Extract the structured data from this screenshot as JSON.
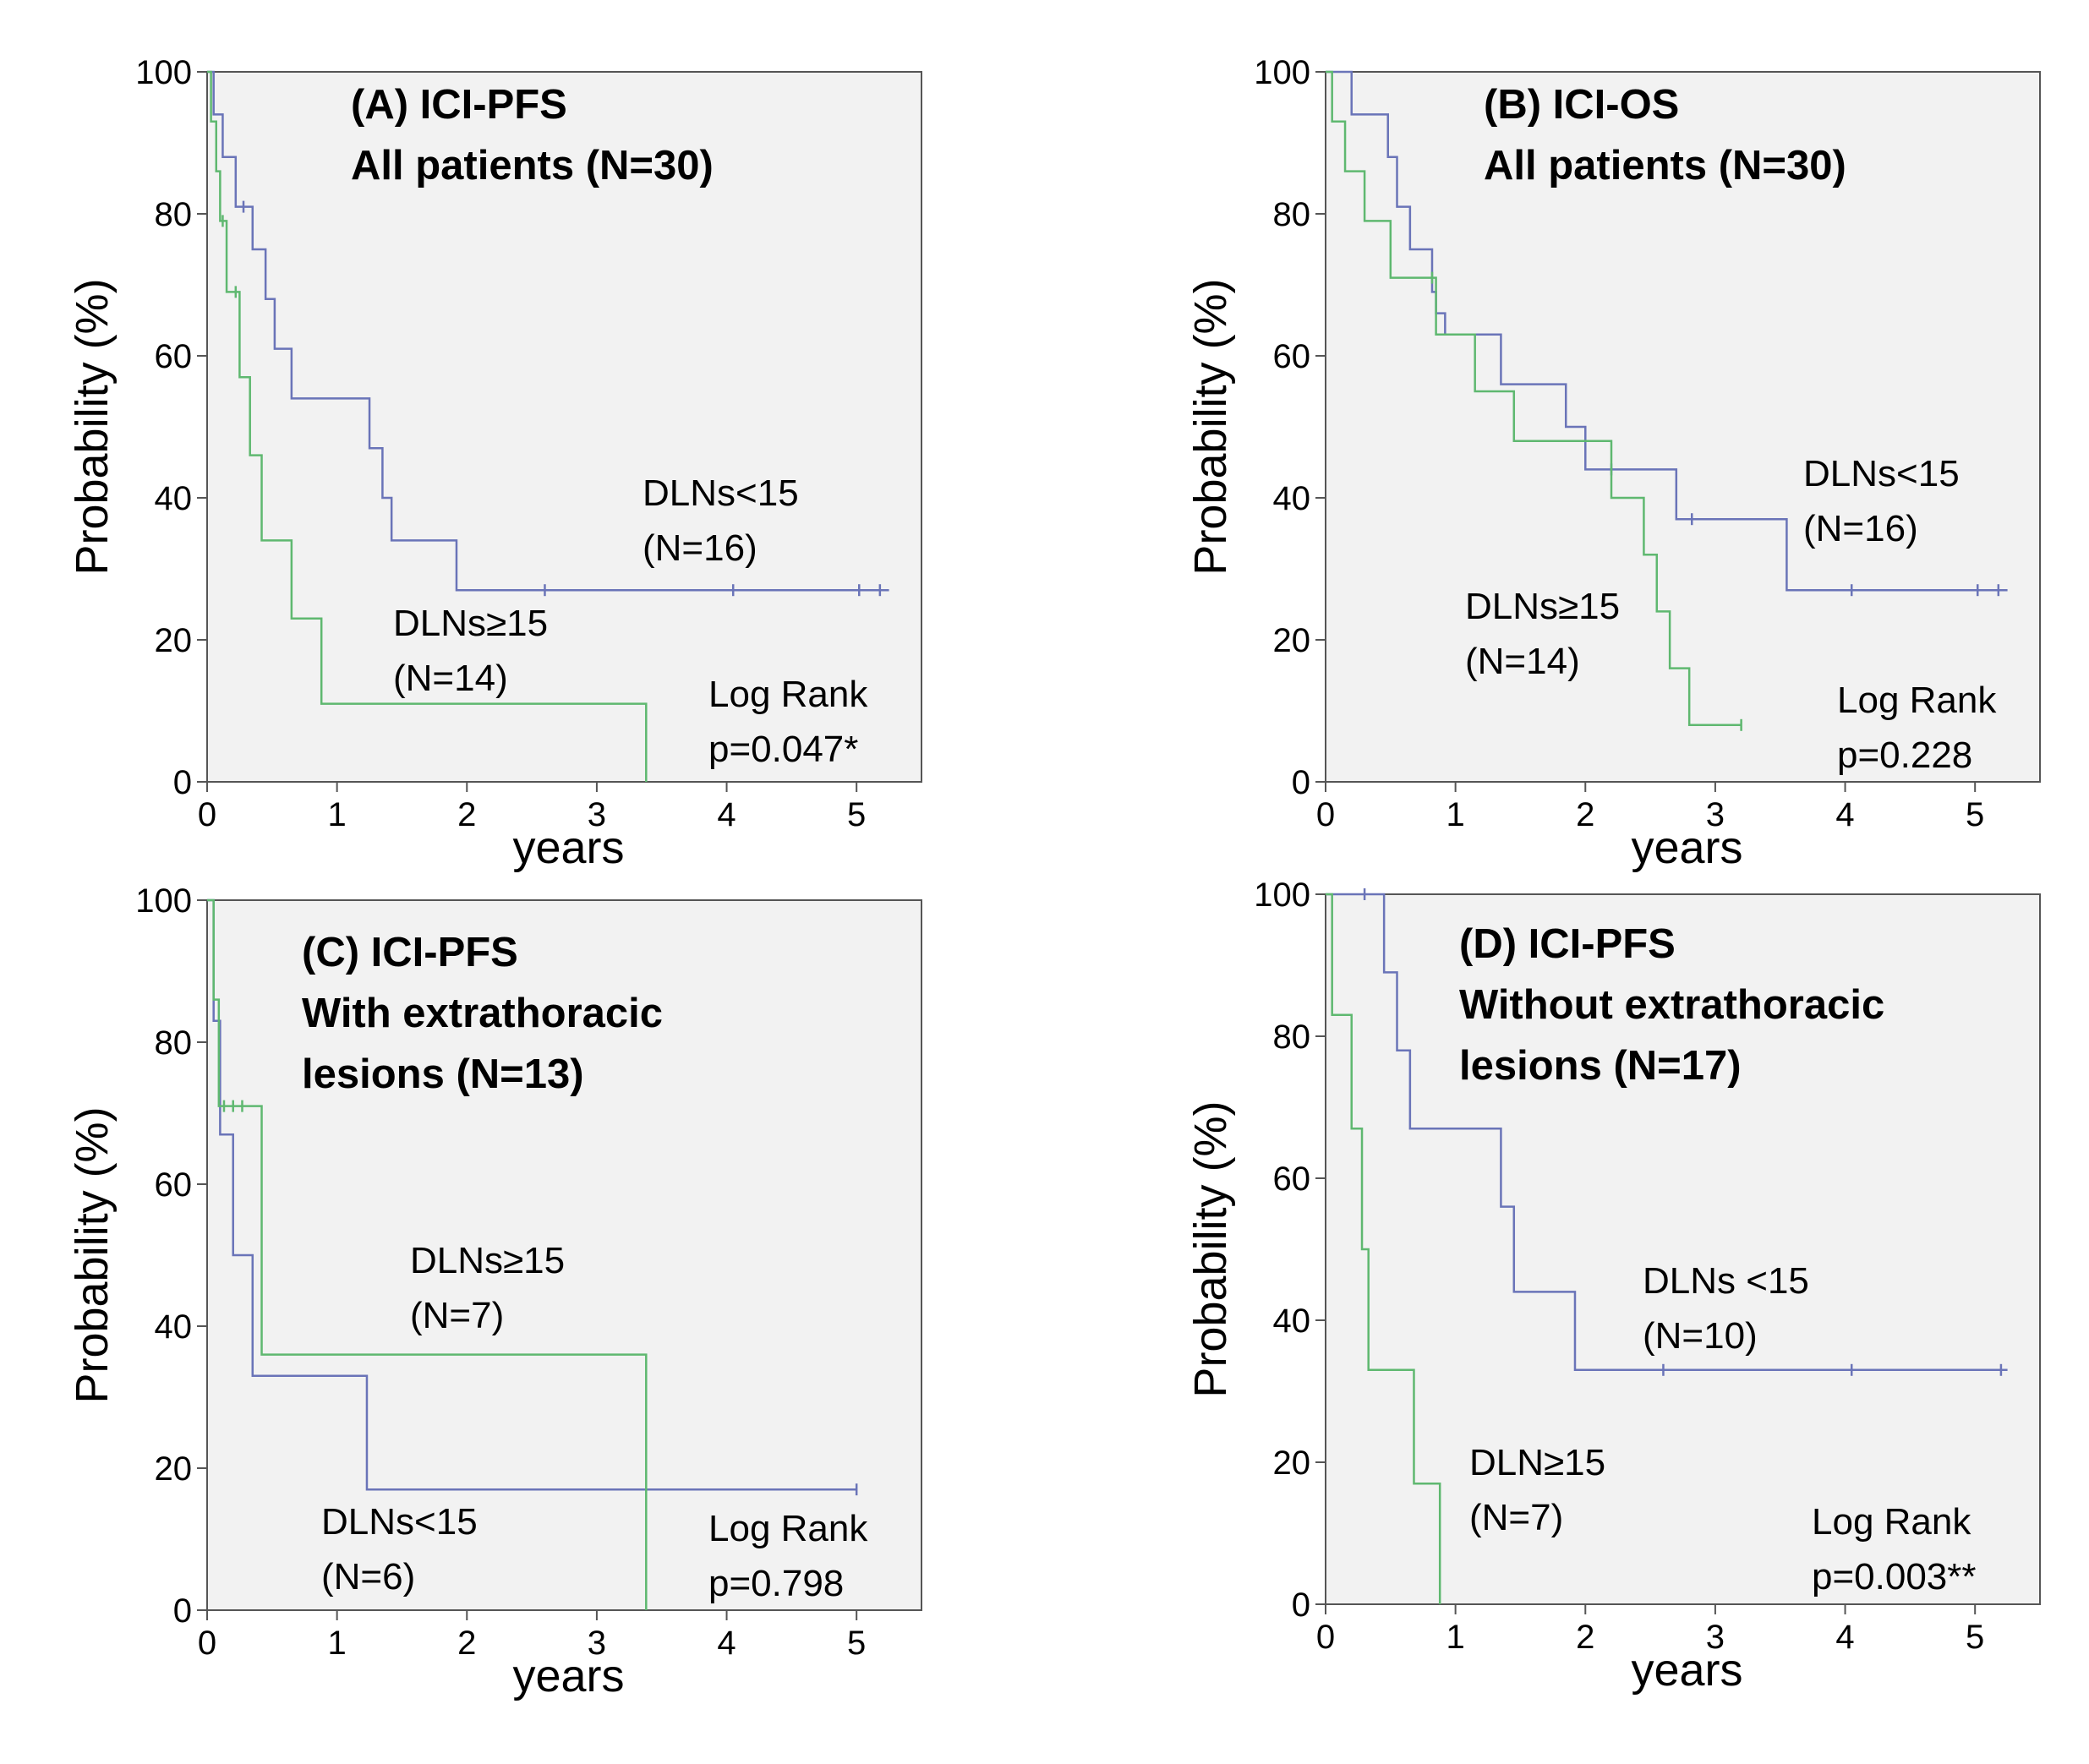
{
  "colors": {
    "green": "#5fb870",
    "blue": "#6a74b8"
  },
  "chart_data": [
    {
      "type": "line",
      "step": true,
      "title_lines": [
        "(A) ICI-PFS",
        "All patients (N=30)"
      ],
      "xlabel": "years",
      "ylabel": "Probability (%)",
      "xlim": [
        0,
        5.5
      ],
      "ylim": [
        0,
        100
      ],
      "xticks": [
        0,
        1,
        2,
        3,
        4,
        5
      ],
      "yticks": [
        0,
        20,
        40,
        60,
        80,
        100
      ],
      "series": [
        {
          "name": "DLNs<15 (N=16)",
          "color": "blue",
          "x": [
            0,
            0.05,
            0.12,
            0.22,
            0.35,
            0.45,
            0.52,
            0.65,
            0.95,
            1.25,
            1.35,
            1.42,
            1.92,
            5.25
          ],
          "y": [
            100,
            94,
            88,
            81,
            75,
            68,
            61,
            54,
            54,
            47,
            40,
            34,
            27,
            27
          ],
          "censored_x": [
            0.28,
            2.6,
            4.05,
            5.02,
            5.18
          ],
          "label_lines": [
            "DLNs<15",
            "(N=16)"
          ]
        },
        {
          "name": "DLNs≥15 (N=14)",
          "color": "green",
          "x": [
            0,
            0.03,
            0.07,
            0.1,
            0.15,
            0.25,
            0.33,
            0.42,
            0.65,
            0.88,
            3.38,
            3.38
          ],
          "y": [
            100,
            93,
            86,
            79,
            69,
            57,
            46,
            34,
            23,
            11,
            11,
            0
          ],
          "censored_x": [
            0.12,
            0.22
          ],
          "label_lines": [
            "DLNs≥15",
            "(N=14)"
          ]
        }
      ],
      "stat_lines": [
        "Log Rank",
        "p=0.047*"
      ]
    },
    {
      "type": "line",
      "step": true,
      "title_lines": [
        "(B) ICI-OS",
        "All patients (N=30)"
      ],
      "xlabel": "years",
      "ylabel": "Probability (%)",
      "xlim": [
        0,
        5.5
      ],
      "ylim": [
        0,
        100
      ],
      "xticks": [
        0,
        1,
        2,
        3,
        4,
        5
      ],
      "yticks": [
        0,
        20,
        40,
        60,
        80,
        100
      ],
      "series": [
        {
          "name": "DLNs<15 (N=16)",
          "color": "blue",
          "x": [
            0,
            0.2,
            0.48,
            0.55,
            0.65,
            0.82,
            0.85,
            0.92,
            1.35,
            1.58,
            1.85,
            2.0,
            2.7,
            3.55,
            5.25
          ],
          "y": [
            100,
            94,
            88,
            81,
            75,
            69,
            66,
            63,
            56,
            56,
            50,
            44,
            37,
            27,
            27
          ],
          "censored_x": [
            2.2,
            2.82,
            4.05,
            5.02,
            5.18
          ],
          "label_lines": [
            "DLNs<15",
            "(N=16)"
          ]
        },
        {
          "name": "DLNs≥15 (N=14)",
          "color": "green",
          "x": [
            0,
            0.05,
            0.15,
            0.3,
            0.5,
            0.85,
            1.15,
            1.45,
            2.05,
            2.2,
            2.45,
            2.55,
            2.65,
            2.8,
            2.9,
            3.2
          ],
          "y": [
            100,
            93,
            86,
            79,
            71,
            63,
            55,
            48,
            48,
            40,
            32,
            24,
            16,
            8,
            8,
            8
          ],
          "censored_x": [
            0.82,
            3.2
          ],
          "label_lines": [
            "DLNs≥15",
            "(N=14)"
          ]
        }
      ],
      "stat_lines": [
        "Log Rank",
        "p=0.228"
      ]
    },
    {
      "type": "line",
      "step": true,
      "title_lines": [
        "(C) ICI-PFS",
        "With extrathoracic",
        "lesions (N=13)"
      ],
      "xlabel": "years",
      "ylabel": "Probability (%)",
      "xlim": [
        0,
        5.5
      ],
      "ylim": [
        0,
        100
      ],
      "xticks": [
        0,
        1,
        2,
        3,
        4,
        5
      ],
      "yticks": [
        0,
        20,
        40,
        60,
        80,
        100
      ],
      "series": [
        {
          "name": "DLNs<15 (N=6)",
          "color": "blue",
          "x": [
            0,
            0.05,
            0.1,
            0.2,
            0.35,
            1.23,
            5.0
          ],
          "y": [
            100,
            83,
            67,
            50,
            33,
            17,
            17
          ],
          "censored_x": [
            5.0
          ],
          "label_lines": [
            "DLNs<15",
            "(N=6)"
          ]
        },
        {
          "name": "DLNs≥15 (N=7)",
          "color": "green",
          "x": [
            0,
            0.05,
            0.09,
            0.42,
            3.38,
            3.38
          ],
          "y": [
            100,
            86,
            71,
            36,
            36,
            0
          ],
          "censored_x": [
            0.13,
            0.2,
            0.27
          ],
          "label_lines": [
            "DLNs≥15",
            "(N=7)"
          ]
        }
      ],
      "stat_lines": [
        "Log Rank",
        "p=0.798"
      ]
    },
    {
      "type": "line",
      "step": true,
      "title_lines": [
        "(D) ICI-PFS",
        "Without extrathoracic",
        "lesions (N=17)"
      ],
      "xlabel": "years",
      "ylabel": "Probability (%)",
      "xlim": [
        0,
        5.5
      ],
      "ylim": [
        0,
        100
      ],
      "xticks": [
        0,
        1,
        2,
        3,
        4,
        5
      ],
      "yticks": [
        0,
        20,
        40,
        60,
        80,
        100
      ],
      "series": [
        {
          "name": "DLNs <15 (N=10)",
          "color": "blue",
          "x": [
            0,
            0.45,
            0.55,
            0.65,
            1.35,
            1.45,
            1.92,
            5.25
          ],
          "y": [
            100,
            89,
            78,
            67,
            56,
            44,
            33,
            33
          ],
          "censored_x": [
            0.3,
            2.6,
            4.05,
            5.2
          ],
          "label_lines": [
            "DLNs <15",
            "(N=10)"
          ]
        },
        {
          "name": "DLN≥15 (N=7)",
          "color": "green",
          "x": [
            0,
            0.05,
            0.2,
            0.28,
            0.33,
            0.68,
            0.88,
            0.88
          ],
          "y": [
            100,
            83,
            67,
            50,
            33,
            17,
            17,
            0
          ],
          "censored_x": [],
          "label_lines": [
            "DLN≥15",
            "(N=7)"
          ]
        }
      ],
      "stat_lines": [
        "Log Rank",
        "p=0.003**"
      ]
    }
  ]
}
